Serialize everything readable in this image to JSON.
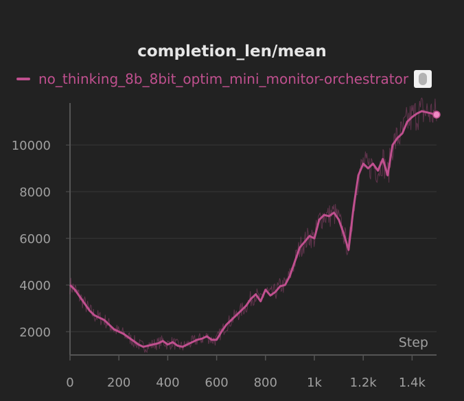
{
  "chart_data": {
    "type": "line",
    "title": "completion_len/mean",
    "xlabel": "Step",
    "ylabel": "",
    "xlim": [
      0,
      1500
    ],
    "ylim": [
      1000,
      11800
    ],
    "x_ticks": [
      0,
      200,
      400,
      600,
      800,
      1000,
      1200,
      1400
    ],
    "x_tick_labels": [
      "0",
      "200",
      "400",
      "600",
      "800",
      "1k",
      "1.2k",
      "1.4k"
    ],
    "y_ticks": [
      2000,
      4000,
      6000,
      8000,
      10000
    ],
    "y_tick_labels": [
      "2000",
      "4000",
      "6000",
      "8000",
      "10000"
    ],
    "grid": true,
    "legend_position": "top-left",
    "series": [
      {
        "name": "no_thinking_8b_8bit_optim_mini_monitor-orchestrator",
        "color": "#c0508f",
        "x": [
          0,
          20,
          40,
          60,
          80,
          100,
          120,
          140,
          160,
          180,
          200,
          220,
          240,
          260,
          280,
          300,
          320,
          340,
          360,
          380,
          400,
          420,
          440,
          460,
          480,
          500,
          520,
          540,
          560,
          580,
          600,
          620,
          640,
          660,
          680,
          700,
          720,
          740,
          760,
          780,
          800,
          820,
          840,
          860,
          880,
          900,
          920,
          940,
          960,
          980,
          1000,
          1020,
          1040,
          1060,
          1080,
          1100,
          1120,
          1140,
          1160,
          1180,
          1200,
          1220,
          1240,
          1260,
          1280,
          1300,
          1320,
          1340,
          1360,
          1380,
          1400,
          1420,
          1440,
          1460,
          1480,
          1500
        ],
        "values": [
          4000,
          3800,
          3500,
          3200,
          2900,
          2700,
          2600,
          2500,
          2300,
          2100,
          2000,
          1900,
          1750,
          1600,
          1450,
          1350,
          1400,
          1450,
          1500,
          1600,
          1450,
          1550,
          1400,
          1350,
          1450,
          1550,
          1650,
          1700,
          1800,
          1650,
          1650,
          2000,
          2300,
          2500,
          2700,
          2900,
          3100,
          3400,
          3600,
          3300,
          3800,
          3550,
          3700,
          3950,
          4000,
          4400,
          5000,
          5600,
          5850,
          6100,
          6000,
          6800,
          7000,
          6950,
          7100,
          6800,
          6200,
          5500,
          7300,
          8700,
          9200,
          9000,
          9200,
          8900,
          9400,
          8700,
          10000,
          10300,
          10500,
          11000,
          11200,
          11350,
          11450,
          11400,
          11350,
          11300
        ],
        "last_point": {
          "x": 1500,
          "y": 11300
        }
      }
    ]
  }
}
